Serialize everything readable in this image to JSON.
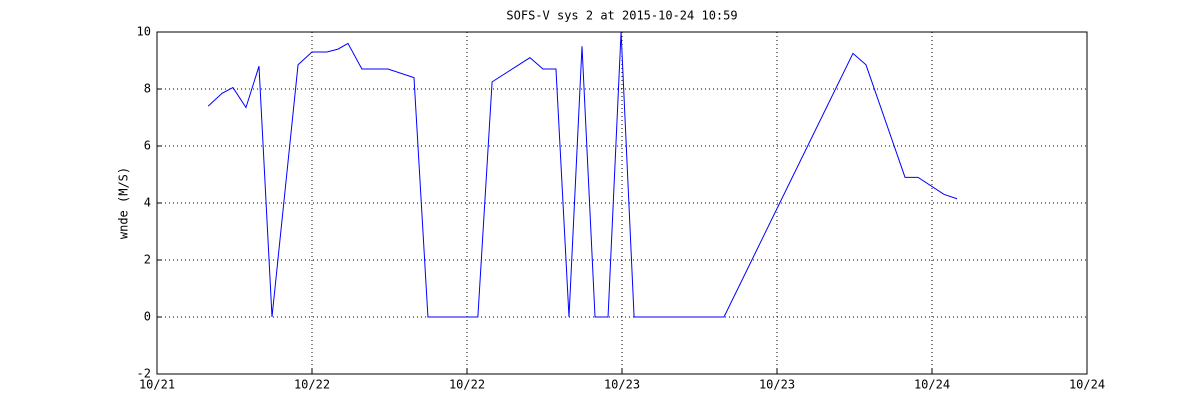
{
  "chart_data": {
    "type": "line",
    "title": "SOFS-V sys 2 at 2015-10-24 10:59",
    "y_label": "wnde (M/S)",
    "x": [
      21.165,
      21.21,
      21.245,
      21.287,
      21.329,
      21.371,
      21.455,
      21.5,
      21.548,
      21.584,
      21.616,
      21.661,
      21.745,
      21.829,
      21.874,
      22.035,
      22.081,
      22.203,
      22.245,
      22.287,
      22.329,
      22.371,
      22.413,
      22.455,
      22.497,
      22.539,
      22.829,
      23.245,
      23.287,
      23.413,
      23.455,
      23.539,
      23.581
    ],
    "series": [
      {
        "name": "wnde",
        "color": "#0000ff",
        "values": [
          7.4,
          7.85,
          8.05,
          7.35,
          8.8,
          0,
          8.85,
          9.3,
          9.3,
          9.4,
          9.6,
          8.7,
          8.7,
          8.4,
          0,
          0,
          8.25,
          9.1,
          8.7,
          8.7,
          0,
          9.5,
          0,
          0,
          10,
          0,
          0,
          9.25,
          8.85,
          4.9,
          4.9,
          4.3,
          4.15
        ]
      }
    ],
    "xlim": [
      21,
      24
    ],
    "xticks": [
      {
        "value": 21,
        "label": "10/21"
      },
      {
        "value": 21.5,
        "label": "10/22"
      },
      {
        "value": 22,
        "label": "10/22"
      },
      {
        "value": 22.5,
        "label": "10/23"
      },
      {
        "value": 23,
        "label": "10/23"
      },
      {
        "value": 23.5,
        "label": "10/24"
      },
      {
        "value": 24,
        "label": "10/24"
      }
    ],
    "ylim": [
      -2,
      10
    ],
    "yticks": [
      -2,
      0,
      2,
      4,
      6,
      8,
      10
    ],
    "grid": true
  }
}
